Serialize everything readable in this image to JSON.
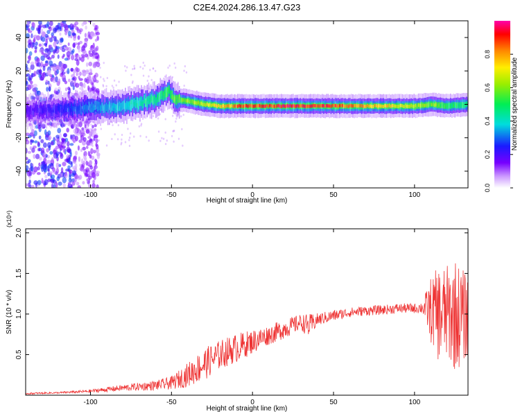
{
  "title": "C2E4.2024.286.13.47.G23",
  "colorbar": {
    "label": "Normalized spectral amplitude",
    "ticks": [
      "0.0",
      "0.2",
      "0.4",
      "0.6",
      "0.8"
    ],
    "range": [
      0,
      1
    ]
  },
  "chart_data": [
    {
      "type": "heatmap",
      "xlabel": "Height of straight line (km)",
      "ylabel": "Frequency (Hz)",
      "xlim": [
        -140,
        133
      ],
      "ylim": [
        -50,
        50
      ],
      "x_ticks": [
        -100,
        -50,
        0,
        50,
        100
      ],
      "y_ticks": [
        -40,
        -20,
        0,
        20,
        40
      ],
      "ridge": {
        "x": [
          -140,
          -120,
          -100,
          -80,
          -60,
          -52,
          -48,
          -40,
          -30,
          -20,
          -10,
          0,
          20,
          40,
          60,
          80,
          100,
          110,
          120,
          133
        ],
        "freq": [
          -4,
          -3,
          -2,
          -1,
          3,
          8,
          3,
          2,
          0,
          -1,
          -1,
          -1,
          -1,
          -1,
          -1,
          -1,
          -1,
          0,
          -1,
          0
        ],
        "amplitude": [
          0.2,
          0.25,
          0.35,
          0.4,
          0.5,
          0.55,
          0.6,
          0.65,
          0.7,
          0.8,
          0.9,
          0.95,
          0.98,
          0.98,
          0.9,
          0.8,
          0.7,
          0.65,
          0.55,
          0.5
        ]
      }
    },
    {
      "type": "line",
      "xlabel": "Height of straight line (km)",
      "ylabel": "SNR (10 * v/v)",
      "scale_label": "(x10⁴)",
      "xlim": [
        -140,
        133
      ],
      "ylim": [
        0,
        2.05
      ],
      "x_ticks": [
        -100,
        -50,
        0,
        50,
        100
      ],
      "y_ticks": [
        "0.5",
        "1.0",
        "1.5",
        "2.0"
      ],
      "series": [
        {
          "color": "#ee3333",
          "x": [
            -140,
            -120,
            -100,
            -80,
            -60,
            -50,
            -40,
            -30,
            -20,
            -10,
            0,
            10,
            20,
            30,
            35,
            40,
            50,
            60,
            70,
            80,
            90,
            100,
            105,
            110,
            115,
            120,
            125,
            130,
            133
          ],
          "values": [
            0.02,
            0.03,
            0.05,
            0.09,
            0.12,
            0.15,
            0.25,
            0.38,
            0.5,
            0.58,
            0.66,
            0.74,
            0.82,
            0.9,
            0.85,
            0.93,
            0.98,
            1.02,
            1.04,
            1.05,
            1.07,
            1.07,
            1.08,
            1.05,
            1.0,
            1.0,
            1.0,
            0.95,
            1.0
          ],
          "amplitude": [
            0.01,
            0.01,
            0.02,
            0.04,
            0.06,
            0.08,
            0.15,
            0.2,
            0.18,
            0.18,
            0.15,
            0.12,
            0.12,
            0.1,
            0.15,
            0.08,
            0.07,
            0.06,
            0.06,
            0.06,
            0.06,
            0.06,
            0.08,
            0.4,
            0.6,
            0.6,
            0.7,
            0.6,
            0.5
          ]
        }
      ]
    }
  ]
}
